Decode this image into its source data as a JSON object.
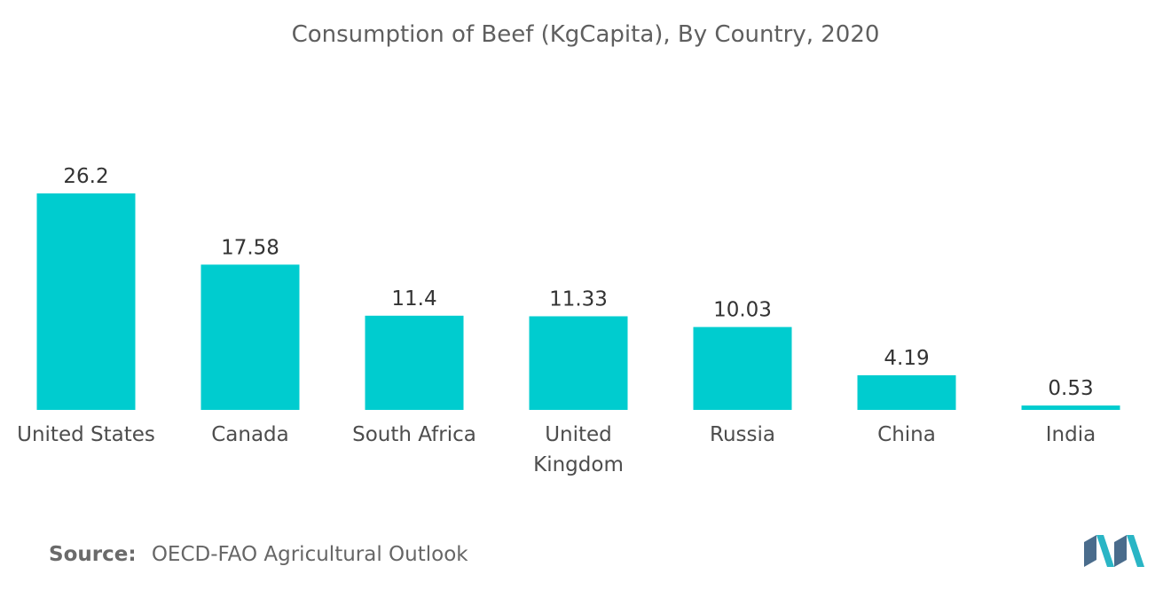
{
  "chart_data": {
    "type": "bar",
    "title": "Consumption of Beef (KgCapita), By Country, 2020",
    "categories": [
      "United States",
      "Canada",
      "South Africa",
      "United Kingdom",
      "Russia",
      "China",
      "India"
    ],
    "category_lines": [
      [
        "United States"
      ],
      [
        "Canada"
      ],
      [
        "South Africa"
      ],
      [
        "United",
        "Kingdom"
      ],
      [
        "Russia"
      ],
      [
        "China"
      ],
      [
        "India"
      ]
    ],
    "values": [
      26.2,
      17.58,
      11.4,
      11.33,
      10.03,
      4.19,
      0.53
    ],
    "value_labels": [
      "26.2",
      "17.58",
      "11.4",
      "11.33",
      "10.03",
      "4.19",
      "0.53"
    ],
    "bar_color": "#00CCCF",
    "xlabel": "",
    "ylabel": "",
    "grid": false,
    "legend": "none"
  },
  "source": {
    "label": "Source:",
    "text": "OECD-FAO Agricultural Outlook"
  },
  "logo_colors": [
    "#4A6C8C",
    "#2AB5C5"
  ]
}
